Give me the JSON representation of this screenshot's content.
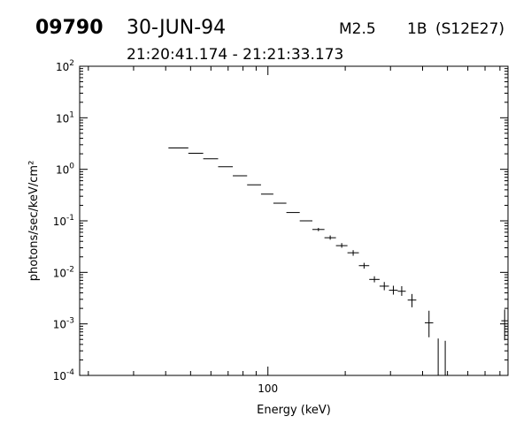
{
  "header": {
    "event_id": "09790",
    "date": "30-JUN-94",
    "goes_class": "M2.5",
    "optical_class": "1B",
    "location": "(S12E27)",
    "time_range": "21:20:41.174 - 21:21:33.173"
  },
  "chart_data": {
    "type": "scatter",
    "title": "",
    "xlabel": "Energy (keV)",
    "ylabel": "photons/sec/keV/cm²",
    "xscale": "log",
    "yscale": "log",
    "xlim": [
      18.5,
      860
    ],
    "ylim": [
      0.0001,
      100
    ],
    "x_tick_labels": [
      {
        "value": 100,
        "label": "100"
      }
    ],
    "y_tick_labels": [
      {
        "value": 100,
        "base": "10",
        "exp": "2"
      },
      {
        "value": 10,
        "base": "10",
        "exp": "1"
      },
      {
        "value": 1,
        "base": "10",
        "exp": "0"
      },
      {
        "value": 0.1,
        "base": "10",
        "exp": "-1"
      },
      {
        "value": 0.01,
        "base": "10",
        "exp": "-2"
      },
      {
        "value": 0.001,
        "base": "10",
        "exp": "-3"
      },
      {
        "value": 0.0001,
        "base": "10",
        "exp": "-4"
      }
    ],
    "grid": false,
    "series": [
      {
        "points": [
          {
            "x_lo": 41,
            "x_hi": 49,
            "y": 2.6
          },
          {
            "x_lo": 49,
            "x_hi": 56,
            "y": 2.05
          },
          {
            "x_lo": 56,
            "x_hi": 64,
            "y": 1.6
          },
          {
            "x_lo": 64,
            "x_hi": 73,
            "y": 1.12
          },
          {
            "x_lo": 73,
            "x_hi": 83,
            "y": 0.75
          },
          {
            "x_lo": 83,
            "x_hi": 94,
            "y": 0.5
          },
          {
            "x_lo": 94,
            "x_hi": 105,
            "y": 0.33
          },
          {
            "x_lo": 105,
            "x_hi": 118,
            "y": 0.22
          },
          {
            "x_lo": 118,
            "x_hi": 133,
            "y": 0.145
          },
          {
            "x_lo": 133,
            "x_hi": 149,
            "y": 0.1
          },
          {
            "x_lo": 149,
            "x_hi": 166,
            "y": 0.068,
            "y_lo": 0.063,
            "y_hi": 0.073
          },
          {
            "x_lo": 166,
            "x_hi": 184,
            "y": 0.047,
            "y_lo": 0.043,
            "y_hi": 0.052
          },
          {
            "x_lo": 184,
            "x_hi": 204,
            "y": 0.033,
            "y_lo": 0.03,
            "y_hi": 0.037
          },
          {
            "x_lo": 204,
            "x_hi": 226,
            "y": 0.024,
            "y_lo": 0.021,
            "y_hi": 0.027
          },
          {
            "x_lo": 226,
            "x_hi": 248,
            "y": 0.0135,
            "y_lo": 0.0118,
            "y_hi": 0.0153
          },
          {
            "x_lo": 248,
            "x_hi": 272,
            "y": 0.0073,
            "y_lo": 0.0064,
            "y_hi": 0.0084
          },
          {
            "x_lo": 272,
            "x_hi": 296,
            "y": 0.0054,
            "y_lo": 0.0045,
            "y_hi": 0.0065
          },
          {
            "x_lo": 296,
            "x_hi": 320,
            "y": 0.0045,
            "y_lo": 0.0037,
            "y_hi": 0.0055
          },
          {
            "x_lo": 320,
            "x_hi": 344,
            "y": 0.0043,
            "y_lo": 0.0035,
            "y_hi": 0.0054
          },
          {
            "x_lo": 350,
            "x_hi": 378,
            "y": 0.0029,
            "y_lo": 0.0021,
            "y_hi": 0.0038
          },
          {
            "x_lo": 408,
            "x_hi": 440,
            "y": 0.00105,
            "y_lo": 0.00055,
            "y_hi": 0.0018
          },
          {
            "x_lo": 460,
            "x_hi": 460,
            "y_lo": 0.0001,
            "y_hi": 0.00052
          },
          {
            "x_lo": 490,
            "x_hi": 490,
            "y_lo": 0.0001,
            "y_hi": 0.00047
          },
          {
            "x_lo": 810,
            "x_hi": 860,
            "y": 0.00115,
            "y_lo": 0.00048,
            "y_hi": 0.0019
          }
        ]
      }
    ]
  }
}
